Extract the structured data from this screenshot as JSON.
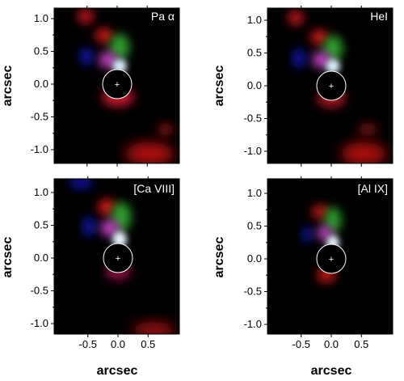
{
  "figure": {
    "y_axis_label": "arcsec",
    "x_axis_label": "arcsec",
    "y_ticks": [
      "1.0",
      "0.5",
      "0.0",
      "-0.5",
      "-1.0"
    ],
    "x_ticks": [
      "-0.5",
      "0.0",
      "0.5"
    ],
    "panels": [
      {
        "id": "pa-alpha",
        "label": "Pa α"
      },
      {
        "id": "hei",
        "label": "HeI"
      },
      {
        "id": "caviii",
        "label": "[Ca VIII]"
      },
      {
        "id": "alix",
        "label": "[Al IX]"
      }
    ]
  }
}
